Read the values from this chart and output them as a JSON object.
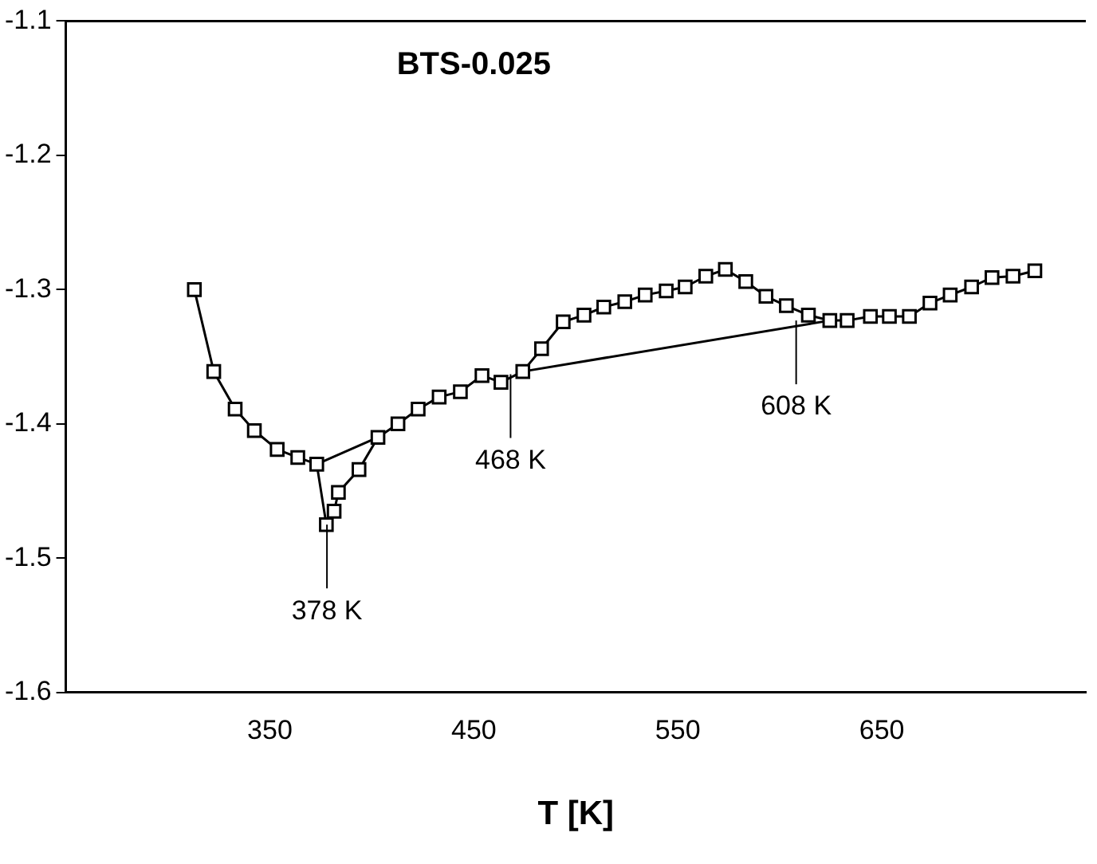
{
  "chart_data": {
    "type": "line",
    "title": "BTS-0.025",
    "xlabel": "T [K]",
    "xlim": [
      250,
      750
    ],
    "xticks": [
      350,
      450,
      550,
      650
    ],
    "ylim": [
      -1.6,
      -1.1
    ],
    "yticks": [
      -1.6,
      -1.5,
      -1.4,
      -1.3,
      -1.2,
      -1.1
    ],
    "marker": "square",
    "legend": false,
    "series": [
      {
        "color": "#000000",
        "x": [
          313,
          322.5,
          333,
          342.4,
          353.6,
          363.7,
          373,
          377.7,
          381.5,
          383.6,
          393.7,
          403,
          412.8,
          422.7,
          433,
          443.4,
          454,
          463.3,
          474,
          483.2,
          493.8,
          504,
          513.7,
          524,
          534,
          544.3,
          553.6,
          563.7,
          573.3,
          583.3,
          593.2,
          603.2,
          614,
          624.5,
          633,
          644.4,
          653.7,
          663.5,
          673.6,
          683.5,
          694,
          704,
          714.3,
          725
        ],
        "values": [
          -1.3,
          -1.361,
          -1.389,
          -1.405,
          -1.419,
          -1.425,
          -1.43,
          -1.475,
          -1.465,
          -1.451,
          -1.434,
          -1.41,
          -1.4,
          -1.389,
          -1.38,
          -1.376,
          -1.364,
          -1.369,
          -1.361,
          -1.344,
          -1.324,
          -1.319,
          -1.313,
          -1.309,
          -1.304,
          -1.301,
          -1.298,
          -1.29,
          -1.285,
          -1.294,
          -1.305,
          -1.312,
          -1.319,
          -1.323,
          -1.323,
          -1.32,
          -1.32,
          -1.32,
          -1.31,
          -1.304,
          -1.298,
          -1.291,
          -1.29,
          -1.286
        ]
      },
      {
        "color": "#000000",
        "marker": "none",
        "x": [
          373,
          403,
          440,
          474,
          624.5
        ],
        "values": [
          -1.43,
          -1.41,
          null,
          -1.361,
          -1.323
        ]
      }
    ],
    "annotations": [
      {
        "text": "378 K",
        "x": 378,
        "y": -1.475
      },
      {
        "text": "468 K",
        "x": 468,
        "y": -1.363
      },
      {
        "text": "608 K",
        "x": 608,
        "y": -1.323
      }
    ]
  }
}
